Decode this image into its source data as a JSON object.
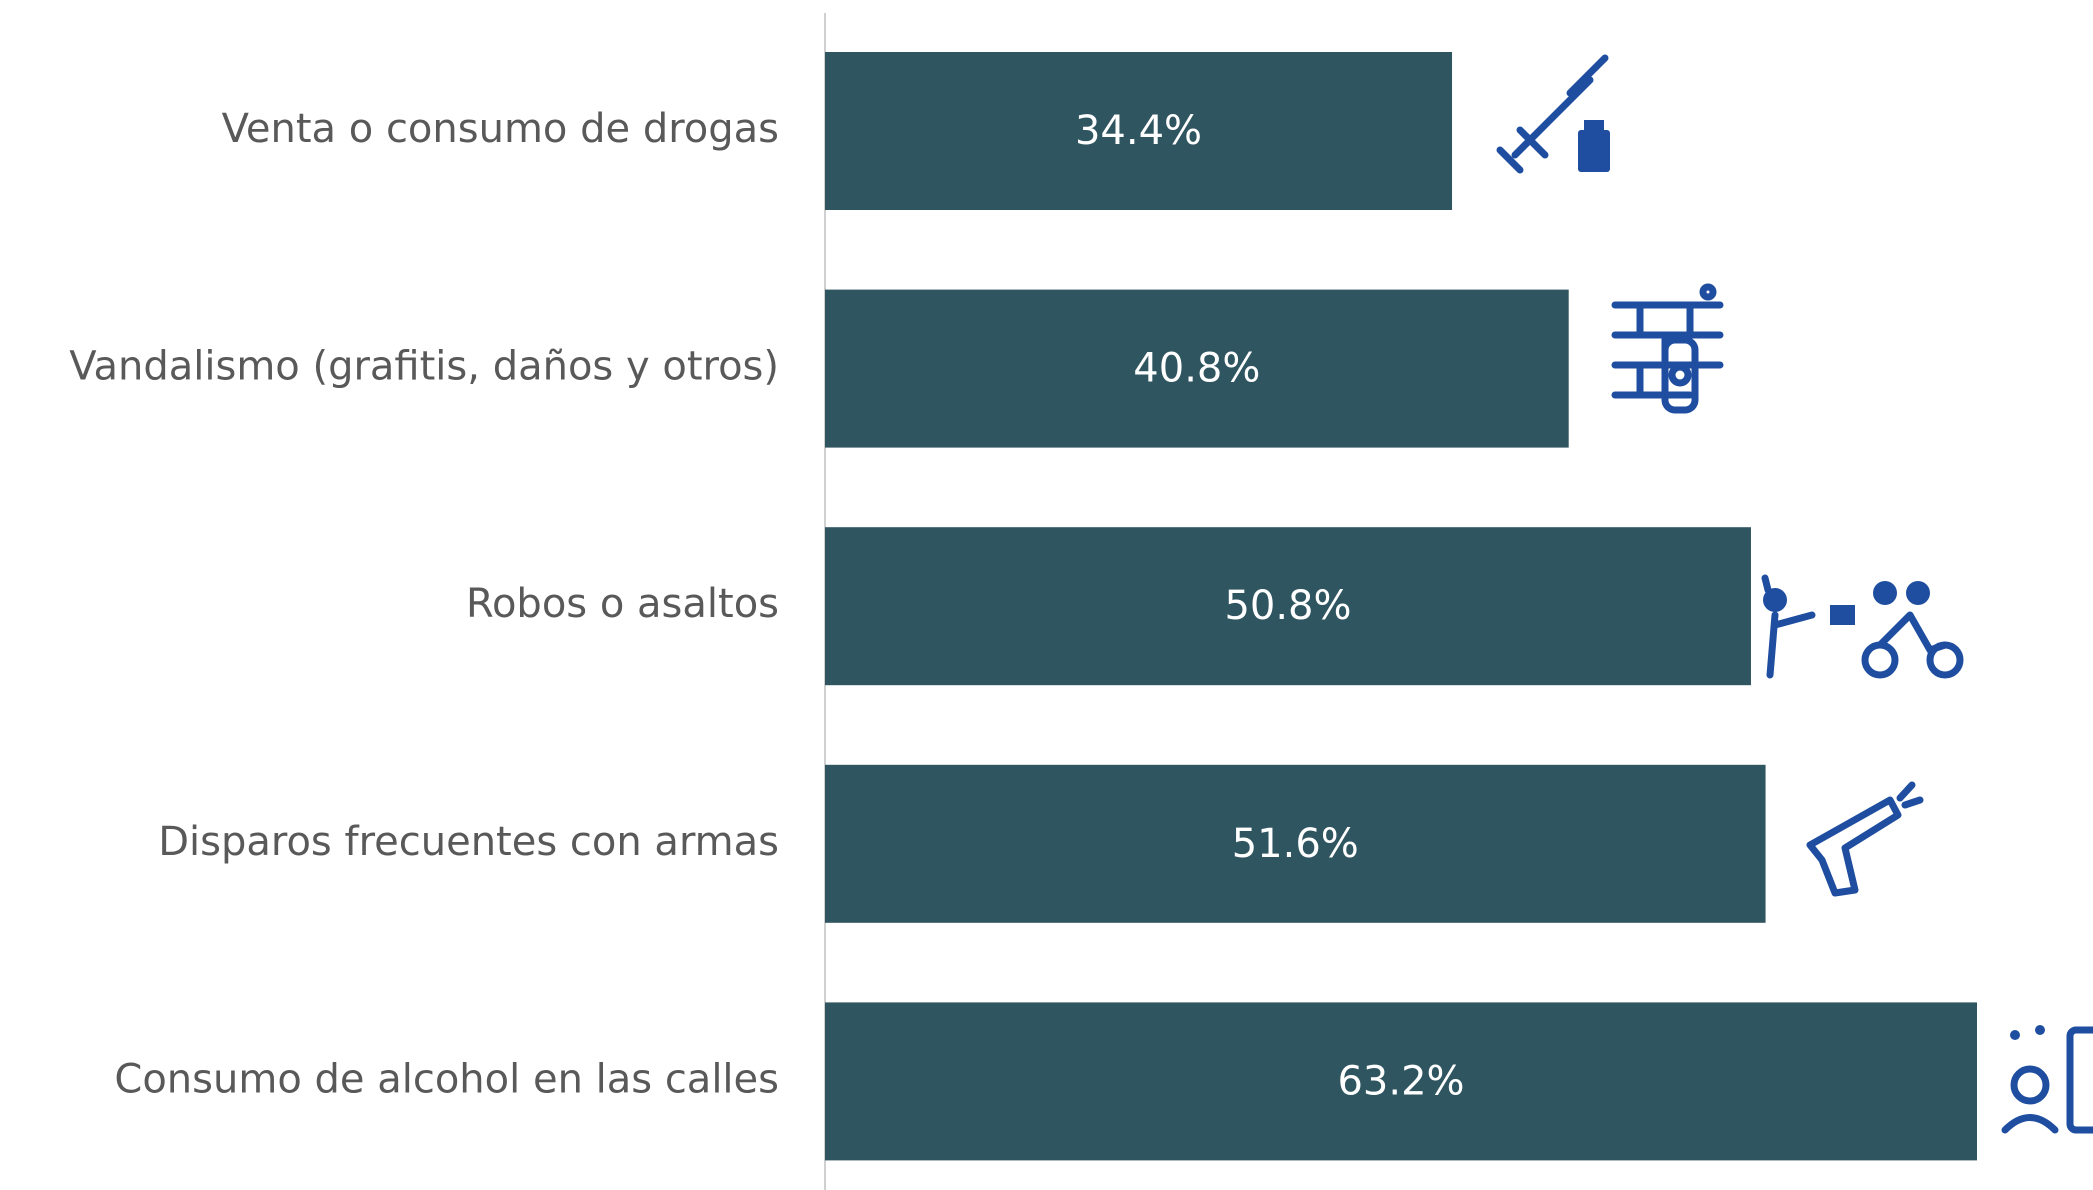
{
  "chart_data": {
    "type": "bar",
    "orientation": "horizontal",
    "categories": [
      "Venta o consumo de drogas",
      "Vandalismo (grafitis, daños y otros)",
      "Robos o asaltos",
      "Disparos frecuentes con armas",
      "Consumo de alcohol en las calles"
    ],
    "values": [
      34.4,
      40.8,
      50.8,
      51.6,
      63.2
    ],
    "value_labels": [
      "34.4%",
      "40.8%",
      "50.8%",
      "51.6%",
      "63.2%"
    ],
    "color": "#2f5560"
  }
}
